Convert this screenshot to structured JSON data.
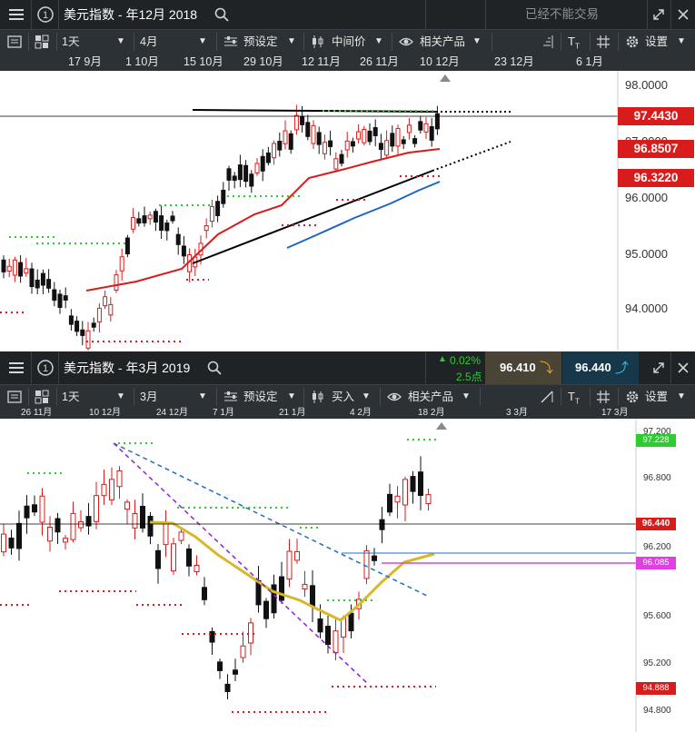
{
  "colors": {
    "bull": "#d81c1c",
    "bear": "#111111",
    "ma1": "#d81c1c",
    "ma2": "#1e64c8",
    "gold": "#d9b72b",
    "purple": "#8b24d6",
    "blue_dash": "#1c6fc4",
    "green_pt": "#2ecc2e",
    "red_pt": "#d81c1c"
  },
  "top": {
    "title": "美元指数 - 年12月 2018",
    "search_icon": "search-icon",
    "status": "已经不能交易",
    "toolbar": {
      "interval": "1天",
      "range": "4月",
      "preset": "预设定",
      "price": "中间价",
      "related": "相关产品",
      "settings": "设置"
    },
    "dates": [
      "17 9月",
      "1 10月",
      "15 10月",
      "29 10月",
      "12 11月",
      "26 11月",
      "10 12月",
      "23 12月",
      "6 1月"
    ],
    "axis": [
      "98.0000",
      "97.0000",
      "96.0000",
      "95.0000",
      "94.0000"
    ],
    "labels": {
      "current": "97.4430",
      "ma_fast": "96.8507",
      "ma_slow": "96.3220"
    }
  },
  "bottom": {
    "title": "美元指数 - 年3月 2019",
    "change_pct": "0.02%",
    "change_pts": "2.5点",
    "sell": "96.410",
    "buy": "96.440",
    "toolbar": {
      "interval": "1天",
      "range": "3月",
      "preset": "预设定",
      "buy": "买入",
      "related": "相关产品",
      "settings": "设置"
    },
    "dates": [
      "26 11月",
      "10 12月",
      "24 12月",
      "7 1月",
      "21 1月",
      "4 2月",
      "18 2月",
      "3 3月",
      "17 3月"
    ],
    "axis": [
      "97.200",
      "96.800",
      "96.200",
      "95.600",
      "95.200",
      "94.800"
    ],
    "labels": {
      "high": "97.228",
      "current": "96.440",
      "ma": "96.085",
      "low": "94.888"
    }
  }
}
